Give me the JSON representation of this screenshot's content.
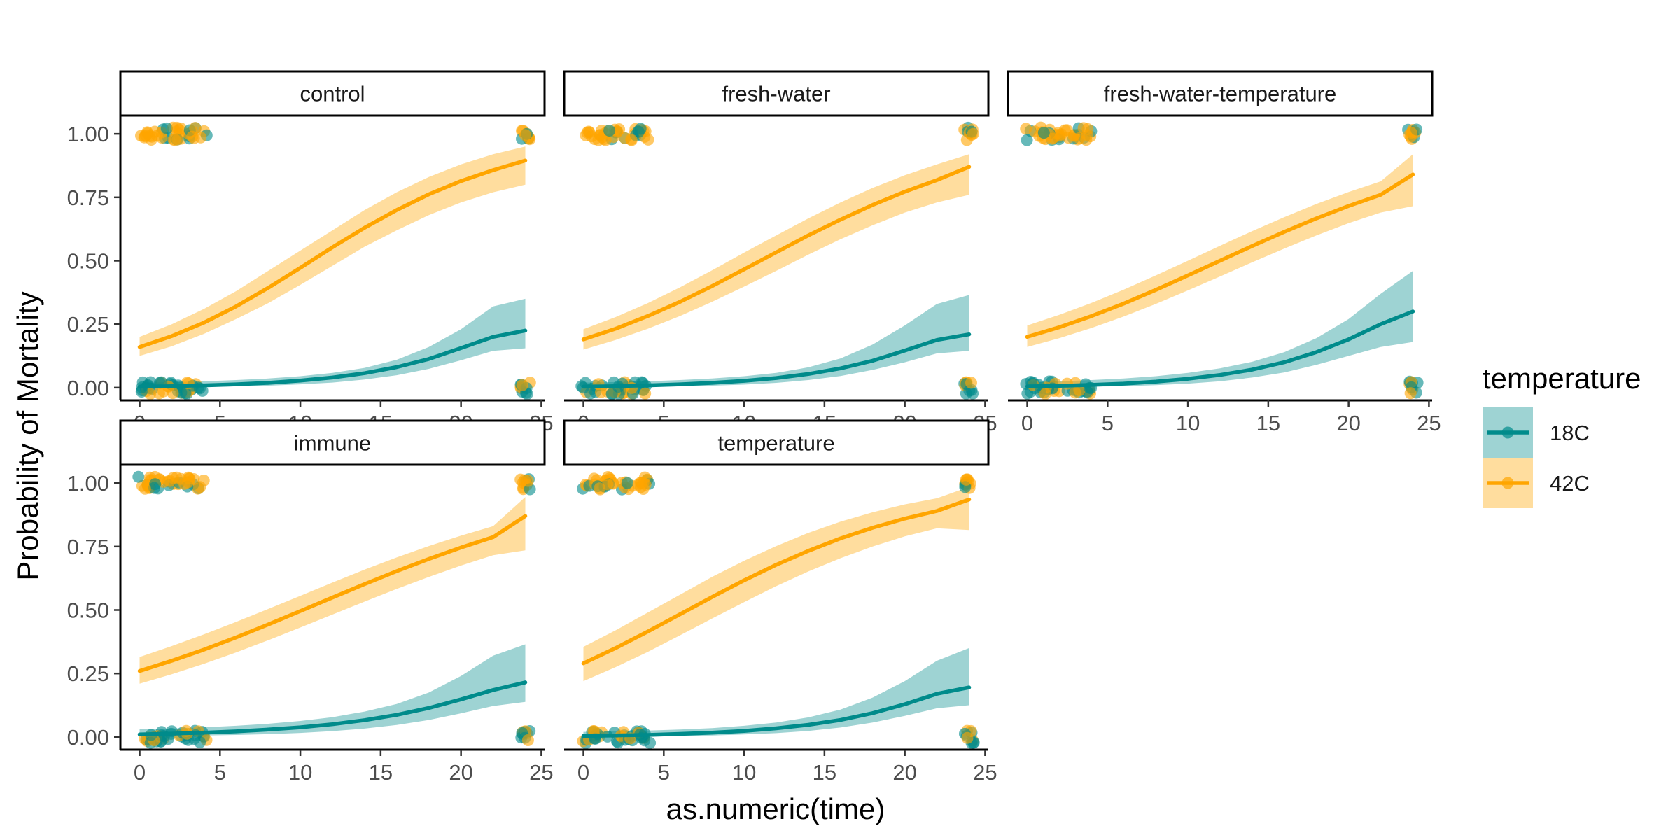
{
  "chart_data": {
    "type": "line",
    "layout": "facet_wrap",
    "facet_columns": 3,
    "xlabel": "as.numeric(time)",
    "ylabel": "Probability of Mortality",
    "x_ticks": [
      0,
      5,
      10,
      15,
      20,
      25
    ],
    "y_ticks": [
      "0.00",
      "0.25",
      "0.50",
      "0.75",
      "1.00"
    ],
    "xlim": [
      -1.2,
      25.2
    ],
    "ylim": [
      -0.05,
      1.05
    ],
    "legend": {
      "title": "temperature",
      "position": "right",
      "entries": [
        {
          "label": "18C",
          "color": "#008B8B"
        },
        {
          "label": "42C",
          "color": "#FFA500"
        }
      ]
    },
    "x_grid": [
      0,
      2,
      4,
      6,
      8,
      10,
      12,
      14,
      16,
      18,
      20,
      22,
      24
    ],
    "facets": [
      {
        "name": "control",
        "series": [
          {
            "name": "18C",
            "color": "#008B8B",
            "fit": [
              0.004,
              0.006,
              0.009,
              0.013,
              0.019,
              0.028,
              0.04,
              0.057,
              0.081,
              0.113,
              0.156,
              0.2,
              0.225
            ],
            "lower": [
              0.001,
              0.002,
              0.003,
              0.005,
              0.008,
              0.013,
              0.02,
              0.032,
              0.049,
              0.074,
              0.108,
              0.145,
              0.155
            ],
            "upper": [
              0.02,
              0.022,
              0.025,
              0.03,
              0.036,
              0.045,
              0.058,
              0.078,
              0.11,
              0.16,
              0.23,
              0.32,
              0.35
            ]
          },
          {
            "name": "42C",
            "color": "#FFA500",
            "fit": [
              0.16,
              0.203,
              0.256,
              0.32,
              0.393,
              0.472,
              0.553,
              0.63,
              0.7,
              0.762,
              0.814,
              0.857,
              0.895
            ],
            "lower": [
              0.125,
              0.163,
              0.212,
              0.27,
              0.333,
              0.405,
              0.48,
              0.555,
              0.62,
              0.68,
              0.73,
              0.77,
              0.8
            ],
            "upper": [
              0.2,
              0.25,
              0.31,
              0.38,
              0.46,
              0.54,
              0.62,
              0.7,
              0.77,
              0.83,
              0.88,
              0.92,
              0.95
            ]
          }
        ]
      },
      {
        "name": "fresh-water",
        "series": [
          {
            "name": "18C",
            "color": "#008B8B",
            "fit": [
              0.004,
              0.006,
              0.009,
              0.013,
              0.019,
              0.027,
              0.038,
              0.054,
              0.076,
              0.106,
              0.146,
              0.188,
              0.21
            ],
            "lower": [
              0.001,
              0.002,
              0.003,
              0.005,
              0.008,
              0.012,
              0.019,
              0.03,
              0.046,
              0.07,
              0.1,
              0.135,
              0.145
            ],
            "upper": [
              0.02,
              0.022,
              0.025,
              0.03,
              0.036,
              0.045,
              0.058,
              0.08,
              0.115,
              0.17,
              0.245,
              0.33,
              0.365
            ]
          },
          {
            "name": "42C",
            "color": "#FFA500",
            "fit": [
              0.19,
              0.232,
              0.282,
              0.338,
              0.4,
              0.466,
              0.533,
              0.6,
              0.662,
              0.72,
              0.772,
              0.818,
              0.87
            ],
            "lower": [
              0.15,
              0.188,
              0.232,
              0.282,
              0.338,
              0.398,
              0.46,
              0.524,
              0.585,
              0.64,
              0.69,
              0.73,
              0.76
            ],
            "upper": [
              0.23,
              0.278,
              0.333,
              0.395,
              0.462,
              0.532,
              0.6,
              0.667,
              0.73,
              0.787,
              0.837,
              0.88,
              0.92
            ]
          }
        ]
      },
      {
        "name": "fresh-water-temperature",
        "series": [
          {
            "name": "18C",
            "color": "#008B8B",
            "fit": [
              0.005,
              0.007,
              0.011,
              0.016,
              0.024,
              0.035,
              0.05,
              0.071,
              0.1,
              0.14,
              0.19,
              0.25,
              0.3
            ],
            "lower": [
              0.001,
              0.002,
              0.004,
              0.006,
              0.01,
              0.016,
              0.025,
              0.04,
              0.06,
              0.09,
              0.125,
              0.16,
              0.18
            ],
            "upper": [
              0.022,
              0.025,
              0.03,
              0.036,
              0.045,
              0.058,
              0.076,
              0.102,
              0.14,
              0.195,
              0.27,
              0.37,
              0.46
            ]
          },
          {
            "name": "42C",
            "color": "#FFA500",
            "fit": [
              0.2,
              0.238,
              0.282,
              0.331,
              0.385,
              0.442,
              0.5,
              0.558,
              0.614,
              0.667,
              0.716,
              0.76,
              0.84
            ],
            "lower": [
              0.16,
              0.195,
              0.235,
              0.28,
              0.33,
              0.383,
              0.438,
              0.494,
              0.548,
              0.6,
              0.648,
              0.69,
              0.715
            ],
            "upper": [
              0.245,
              0.287,
              0.334,
              0.386,
              0.442,
              0.5,
              0.559,
              0.617,
              0.672,
              0.724,
              0.771,
              0.813,
              0.92
            ]
          }
        ]
      },
      {
        "name": "immune",
        "series": [
          {
            "name": "18C",
            "color": "#008B8B",
            "fit": [
              0.01,
              0.013,
              0.017,
              0.022,
              0.029,
              0.038,
              0.05,
              0.066,
              0.087,
              0.114,
              0.148,
              0.185,
              0.215
            ],
            "lower": [
              0.003,
              0.004,
              0.006,
              0.008,
              0.011,
              0.016,
              0.023,
              0.033,
              0.047,
              0.067,
              0.093,
              0.122,
              0.138
            ],
            "upper": [
              0.03,
              0.033,
              0.038,
              0.044,
              0.052,
              0.063,
              0.078,
              0.1,
              0.13,
              0.175,
              0.24,
              0.32,
              0.365
            ]
          },
          {
            "name": "42C",
            "color": "#FFA500",
            "fit": [
              0.26,
              0.3,
              0.344,
              0.392,
              0.443,
              0.496,
              0.549,
              0.602,
              0.653,
              0.701,
              0.746,
              0.787,
              0.87
            ],
            "lower": [
              0.21,
              0.247,
              0.288,
              0.333,
              0.381,
              0.431,
              0.482,
              0.533,
              0.583,
              0.63,
              0.675,
              0.716,
              0.735
            ],
            "upper": [
              0.315,
              0.358,
              0.404,
              0.453,
              0.504,
              0.556,
              0.608,
              0.659,
              0.707,
              0.752,
              0.793,
              0.83,
              0.945
            ]
          }
        ]
      },
      {
        "name": "temperature",
        "series": [
          {
            "name": "18C",
            "color": "#008B8B",
            "fit": [
              0.004,
              0.006,
              0.008,
              0.012,
              0.017,
              0.024,
              0.034,
              0.048,
              0.067,
              0.094,
              0.129,
              0.17,
              0.195
            ],
            "lower": [
              0.001,
              0.002,
              0.003,
              0.004,
              0.006,
              0.01,
              0.015,
              0.024,
              0.037,
              0.057,
              0.083,
              0.113,
              0.125
            ],
            "upper": [
              0.02,
              0.022,
              0.025,
              0.029,
              0.035,
              0.044,
              0.057,
              0.077,
              0.108,
              0.155,
              0.22,
              0.3,
              0.35
            ]
          },
          {
            "name": "42C",
            "color": "#FFA500",
            "fit": [
              0.29,
              0.35,
              0.415,
              0.483,
              0.551,
              0.617,
              0.678,
              0.733,
              0.782,
              0.824,
              0.86,
              0.89,
              0.935
            ],
            "lower": [
              0.22,
              0.275,
              0.335,
              0.4,
              0.466,
              0.531,
              0.594,
              0.652,
              0.704,
              0.75,
              0.79,
              0.822,
              0.815
            ],
            "upper": [
              0.355,
              0.42,
              0.49,
              0.56,
              0.63,
              0.694,
              0.752,
              0.804,
              0.848,
              0.885,
              0.916,
              0.94,
              0.985
            ]
          }
        ]
      }
    ]
  }
}
